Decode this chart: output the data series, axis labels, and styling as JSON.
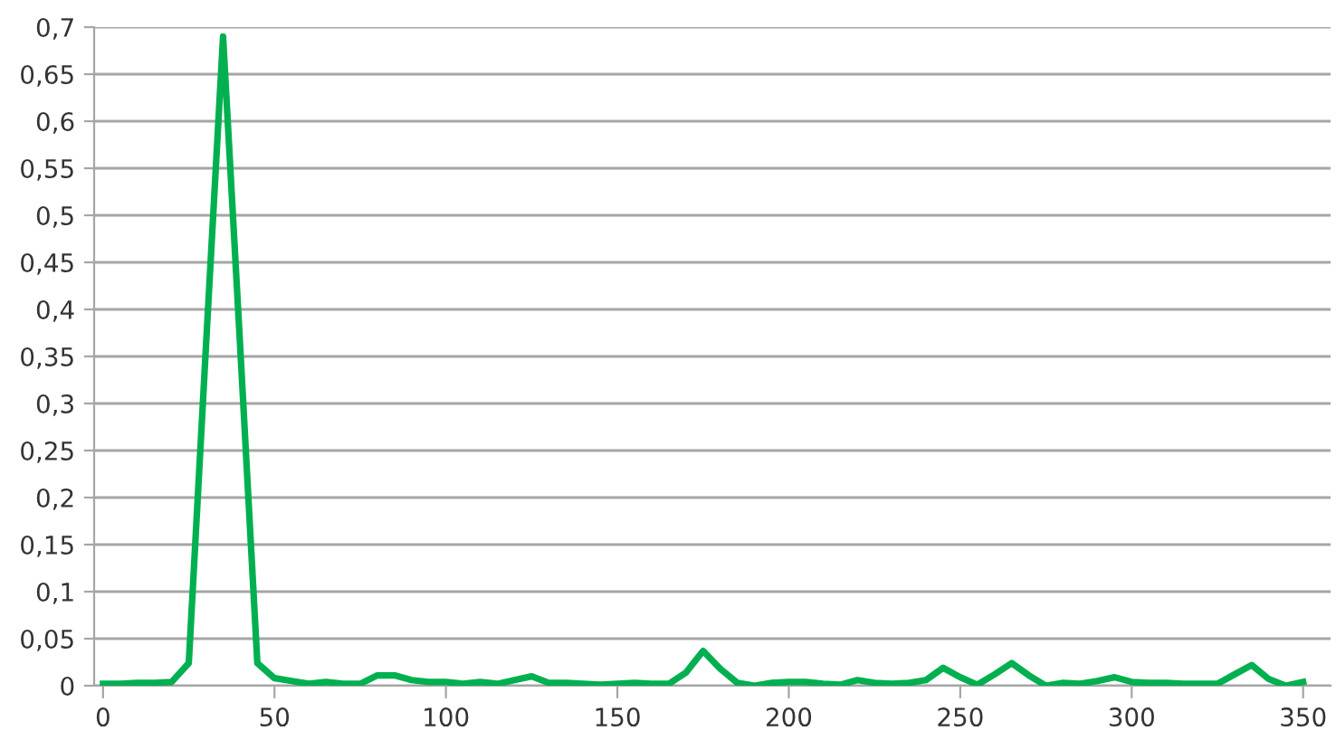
{
  "chart_data": {
    "type": "line",
    "x": [
      0,
      5,
      10,
      15,
      20,
      25,
      30,
      35,
      40,
      45,
      50,
      55,
      60,
      65,
      70,
      75,
      80,
      85,
      90,
      95,
      100,
      105,
      110,
      115,
      120,
      125,
      130,
      135,
      140,
      145,
      150,
      155,
      160,
      165,
      170,
      175,
      180,
      185,
      190,
      195,
      200,
      205,
      210,
      215,
      220,
      225,
      230,
      235,
      240,
      245,
      250,
      255,
      260,
      265,
      270,
      275,
      280,
      285,
      290,
      295,
      300,
      305,
      310,
      315,
      320,
      325,
      330,
      335,
      340,
      345,
      350
    ],
    "series": [
      {
        "color": "#00b050",
        "values": [
          0.002,
          0.002,
          0.003,
          0.003,
          0.004,
          0.024,
          0.36,
          0.69,
          0.36,
          0.024,
          0.008,
          0.005,
          0.002,
          0.004,
          0.002,
          0.002,
          0.011,
          0.011,
          0.006,
          0.004,
          0.004,
          0.002,
          0.004,
          0.002,
          0.006,
          0.01,
          0.003,
          0.003,
          0.002,
          0.001,
          0.002,
          0.003,
          0.002,
          0.002,
          0.014,
          0.037,
          0.018,
          0.003,
          0.0,
          0.003,
          0.004,
          0.004,
          0.002,
          0.001,
          0.006,
          0.003,
          0.002,
          0.003,
          0.006,
          0.019,
          0.009,
          0.001,
          0.012,
          0.024,
          0.011,
          0.0,
          0.003,
          0.002,
          0.005,
          0.009,
          0.004,
          0.003,
          0.003,
          0.002,
          0.002,
          0.002,
          0.012,
          0.022,
          0.007,
          0.0,
          0.004
        ]
      }
    ],
    "xlim": [
      -2.6,
      358
    ],
    "xticks": [
      0,
      50,
      100,
      150,
      200,
      250,
      300,
      350
    ],
    "ylim": [
      0,
      0.7
    ],
    "yticks": [
      0,
      {
        "value": 0.05,
        "label": "0,05"
      },
      {
        "value": 0.1,
        "label": "0,1"
      },
      {
        "value": 0.15,
        "label": "0,15"
      },
      {
        "value": 0.2,
        "label": "0,2"
      },
      {
        "value": 0.25,
        "label": "0,25"
      },
      {
        "value": 0.3,
        "label": "0,3"
      },
      {
        "value": 0.35,
        "label": "0,35"
      },
      {
        "value": 0.4,
        "label": "0,4"
      },
      {
        "value": 0.45,
        "label": "0,45"
      },
      {
        "value": 0.5,
        "label": "0,5"
      },
      {
        "value": 0.55,
        "label": "0,55"
      },
      {
        "value": 0.6,
        "label": "0,6"
      },
      {
        "value": 0.65,
        "label": "0,65"
      },
      {
        "value": 0.7,
        "label": "0,7"
      }
    ],
    "grid": "y",
    "marker": "none",
    "line_style": "solid"
  }
}
